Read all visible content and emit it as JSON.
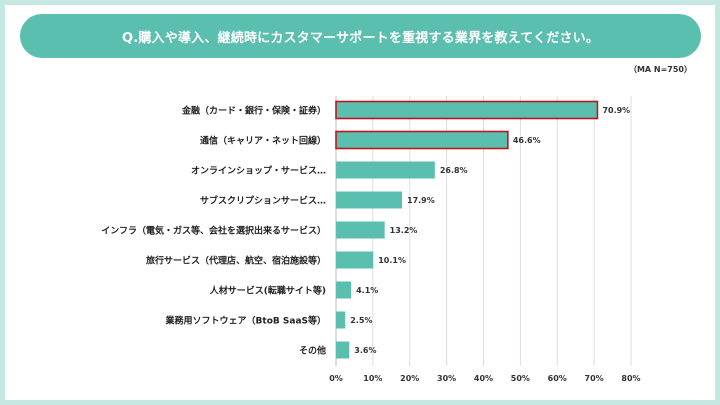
{
  "header": {
    "title": "Q.購入や導入、継続時にカスタマーサポートを重視する業界を教えてください。",
    "sample_note": "（MA N=750）"
  },
  "chart_data": {
    "type": "bar",
    "orientation": "horizontal",
    "title": "Q.購入や導入、継続時にカスタマーサポートを重視する業界を教えてください。",
    "categories": [
      "金融（カード・銀行・保険・証券）",
      "通信（キャリア・ネット回線）",
      "オンラインショップ・サービス…",
      "サブスクリプションサービス…",
      "インフラ（電気・ガス等、会社を選択出来るサービス）",
      "旅行サービス（代理店、航空、宿泊施設等）",
      "人材サービス(転職サイト等)",
      "業務用ソフトウェア（BtoB SaaS等）",
      "その他"
    ],
    "values": [
      70.9,
      46.6,
      26.8,
      17.9,
      13.2,
      10.1,
      4.1,
      2.5,
      3.6
    ],
    "value_labels": [
      "70.9%",
      "46.6%",
      "26.8%",
      "17.9%",
      "13.2%",
      "10.1%",
      "4.1%",
      "2.5%",
      "3.6%"
    ],
    "highlighted": [
      true,
      true,
      false,
      false,
      false,
      false,
      false,
      false,
      false
    ],
    "xlim": [
      0,
      80
    ],
    "ticks": [
      0,
      10,
      20,
      30,
      40,
      50,
      60,
      70,
      80
    ],
    "tick_labels": [
      "0%",
      "10%",
      "20%",
      "30%",
      "40%",
      "50%",
      "60%",
      "70%",
      "80%"
    ],
    "grid": true,
    "xlabel": "",
    "ylabel": "",
    "colors": {
      "bar": "#5bbfb0",
      "highlight_border": "#c0141e",
      "grid": "#dddddd"
    }
  }
}
